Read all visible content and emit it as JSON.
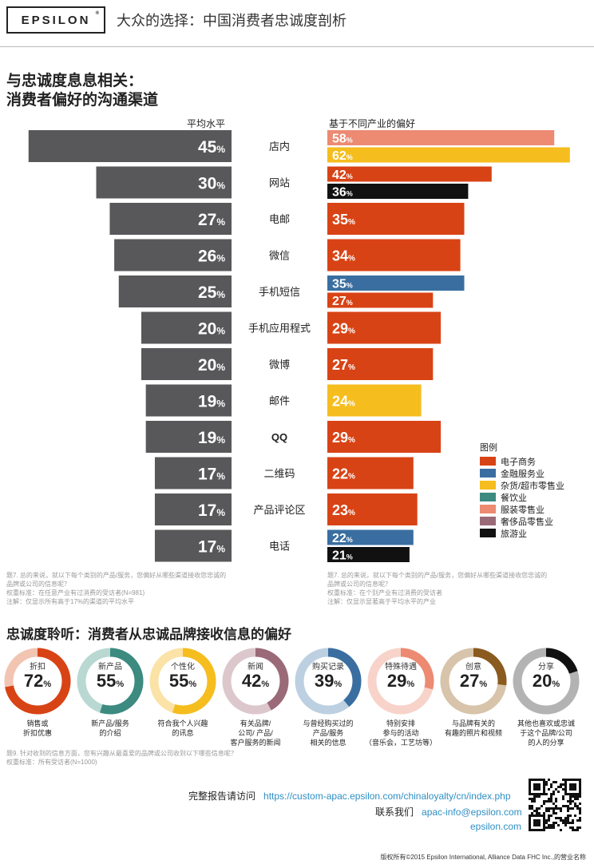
{
  "header": {
    "logo": "EPSILON",
    "logo_mark": "®",
    "title": "大众的选择：中国消费者忠诚度剖析"
  },
  "section1": {
    "title_line1": "与忠诚度息息相关：",
    "title_line2": "消费者偏好的沟通渠道",
    "avg_label": "平均水平",
    "pref_label": "基于不同产业的偏好"
  },
  "colors": {
    "gray": "#58585a",
    "ecommerce": "#d84315",
    "finance": "#3a6ea0",
    "grocery": "#f5bd1e",
    "food": "#3c8a80",
    "apparel": "#ec8a72",
    "luxury": "#9a6a78",
    "travel": "#111111"
  },
  "legend": {
    "title": "图例",
    "items": [
      {
        "label": "电子商务",
        "color": "#d84315"
      },
      {
        "label": "金融服务业",
        "color": "#3a6ea0"
      },
      {
        "label": "杂货/超市零售业",
        "color": "#f5bd1e"
      },
      {
        "label": "餐饮业",
        "color": "#3c8a80"
      },
      {
        "label": "服装零售业",
        "color": "#ec8a72"
      },
      {
        "label": "奢侈品零售业",
        "color": "#9a6a78"
      },
      {
        "label": "旅游业",
        "color": "#111111"
      }
    ]
  },
  "chart_data": {
    "type": "bar",
    "categories": [
      "店内",
      "网站",
      "电邮",
      "微信",
      "手机短信",
      "手机应用程式",
      "微博",
      "邮件",
      "QQ",
      "二维码",
      "产品评论区",
      "电话"
    ],
    "average": [
      45,
      30,
      27,
      26,
      25,
      20,
      20,
      19,
      19,
      17,
      17,
      17
    ],
    "industry_preference": [
      [
        {
          "industry": "服装零售业",
          "value": 58,
          "color": "#ec8a72"
        },
        {
          "industry": "杂货/超市零售业",
          "value": 62,
          "color": "#f5bd1e"
        }
      ],
      [
        {
          "industry": "电子商务",
          "value": 42,
          "color": "#d84315"
        },
        {
          "industry": "旅游业",
          "value": 36,
          "color": "#111111"
        }
      ],
      [
        {
          "industry": "电子商务",
          "value": 35,
          "color": "#d84315"
        }
      ],
      [
        {
          "industry": "电子商务",
          "value": 34,
          "color": "#d84315"
        }
      ],
      [
        {
          "industry": "金融服务业",
          "value": 35,
          "color": "#3a6ea0"
        },
        {
          "industry": "电子商务",
          "value": 27,
          "color": "#d84315"
        }
      ],
      [
        {
          "industry": "电子商务",
          "value": 29,
          "color": "#d84315"
        }
      ],
      [
        {
          "industry": "电子商务",
          "value": 27,
          "color": "#d84315"
        }
      ],
      [
        {
          "industry": "杂货/超市零售业",
          "value": 24,
          "color": "#f5bd1e"
        }
      ],
      [
        {
          "industry": "电子商务",
          "value": 29,
          "color": "#d84315"
        }
      ],
      [
        {
          "industry": "电子商务",
          "value": 22,
          "color": "#d84315"
        }
      ],
      [
        {
          "industry": "电子商务",
          "value": 23,
          "color": "#d84315"
        }
      ],
      [
        {
          "industry": "金融服务业",
          "value": 22,
          "color": "#3a6ea0"
        },
        {
          "industry": "旅游业",
          "value": 21,
          "color": "#111111"
        }
      ]
    ],
    "unit": "%"
  },
  "notes_left": [
    "题7. 总的来说，就以下每个类别的产品/服务，您偏好从哪些渠道接收您忠诚的",
    "品牌或公司的信息呢？",
    "权重标准：在任意产业有过消费的受访者(N=981)",
    "注解：仅显示所有高于17%的渠道的平均水平"
  ],
  "notes_right": [
    "题7. 总的来说，就以下每个类别的产品/服务，您偏好从哪些渠道接收您忠诚的",
    "品牌或公司的信息呢？",
    "权重标准：在个别产业有过消费的受访者",
    "注解：仅显示显著高于平均水平的产业"
  ],
  "section2": {
    "title": "忠诚度聆听：消费者从忠诚品牌接收信息的偏好",
    "donuts": [
      {
        "caption": "折扣",
        "value": 72,
        "desc": [
          "销售或",
          "折扣优惠"
        ],
        "color": "#d84315",
        "track": "#f2c4b2"
      },
      {
        "caption": "新产品",
        "value": 55,
        "desc": [
          "新产品/服务",
          "的介绍"
        ],
        "color": "#3c8a80",
        "track": "#b9d8d2"
      },
      {
        "caption": "个性化",
        "value": 55,
        "desc": [
          "符合我个人兴趣",
          "的讯息"
        ],
        "color": "#f5bd1e",
        "track": "#fbe2a6"
      },
      {
        "caption": "新闻",
        "value": 42,
        "desc": [
          "有关品牌/",
          "公司/ 产品/",
          "客户服务的新闻"
        ],
        "color": "#9a6a78",
        "track": "#dcc7cd"
      },
      {
        "caption": "购买记录",
        "value": 39,
        "desc": [
          "与曾经购买过的",
          "产品/服务",
          "相关的信息"
        ],
        "color": "#3a6ea0",
        "track": "#bcd0e2"
      },
      {
        "caption": "特殊待遇",
        "value": 29,
        "desc": [
          "特别安排",
          "参与的活动",
          "（音乐会，工艺坊等）"
        ],
        "color": "#ec8a72",
        "track": "#f8d3c9"
      },
      {
        "caption": "创意",
        "value": 27,
        "desc": [
          "与品牌有关的",
          "有趣的照片和视频"
        ],
        "color": "#8a5a1e",
        "track": "#d7c4aa"
      },
      {
        "caption": "分享",
        "value": 20,
        "desc": [
          "其他也喜欢或忠诚",
          "于这个品牌/公司",
          "的人的分享"
        ],
        "color": "#111111",
        "track": "#b3b3b3"
      }
    ],
    "note1": "题9. 针对收到的信息方面，您有兴趣从最喜爱的品牌或公司收到以下哪些信息呢？",
    "note2": "权重标准：所有受访者(N=1000)"
  },
  "footer": {
    "report_label": "完整报告请访问",
    "report_url": "https://custom-apac.epsilon.com/chinaloyalty/cn/index.php",
    "contact_label": "联系我们",
    "email": "apac-info@epsilon.com",
    "site": "epsilon.com",
    "copyright": "版权所有©2015 Epsilon International, Alliance Data FHC Inc.,的营业名称"
  }
}
